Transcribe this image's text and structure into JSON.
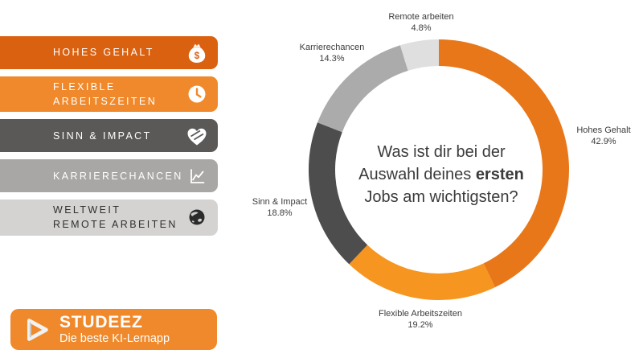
{
  "page": {
    "background": "#FFFFFF"
  },
  "sidebar": {
    "items": [
      {
        "label": "HOHES GEHALT",
        "icon": "money-bag",
        "bg": "#DA6110",
        "fg": "#FFFFFF"
      },
      {
        "label": "FLEXIBLE ARBEITSZEITEN",
        "icon": "clock",
        "bg": "#F0892B",
        "fg": "#FFFFFF"
      },
      {
        "label": "SINN & IMPACT",
        "icon": "heart-hands",
        "bg": "#5B5957",
        "fg": "#FFFFFF"
      },
      {
        "label": "KARRIERECHANCEN",
        "icon": "line-chart",
        "bg": "#A8A7A5",
        "fg": "#FFFFFF"
      },
      {
        "label": "WELTWEIT REMOTE ARBEITEN",
        "icon": "globe",
        "bg": "#D4D3D1",
        "fg": "#2F2F2F"
      }
    ]
  },
  "logo": {
    "name": "STUDEEZ",
    "tagline": "Die beste KI-Lernapp",
    "bg": "#F0892B",
    "fg": "#FFFFFF",
    "icon": "play"
  },
  "question": {
    "line1": "Was ist dir bei der",
    "line2_normal": "Auswahl deines",
    "line2_bold": "ersten",
    "line3": "Jobs am wichtigsten?"
  },
  "chart_data": {
    "type": "pie",
    "variant": "donut",
    "direction": "clockwise",
    "start_angle_deg": 0,
    "legend": "none",
    "center_text": "Was ist dir bei der Auswahl deines ersten Jobs am wichtigsten?",
    "slices": [
      {
        "label": "Hohes Gehalt",
        "value": 42.9,
        "pct_label": "42.9%",
        "color": "#E8771A"
      },
      {
        "label": "Flexible Arbeitszeiten",
        "value": 19.2,
        "pct_label": "19.2%",
        "color": "#F6951F"
      },
      {
        "label": "Sinn & Impact",
        "value": 18.8,
        "pct_label": "18.8%",
        "color": "#4D4D4D"
      },
      {
        "label": "Karrierechancen",
        "value": 14.3,
        "pct_label": "14.3%",
        "color": "#ABABAB"
      },
      {
        "label": "Remote arbeiten",
        "value": 4.8,
        "pct_label": "4.8%",
        "color": "#DFDFDF"
      }
    ]
  }
}
